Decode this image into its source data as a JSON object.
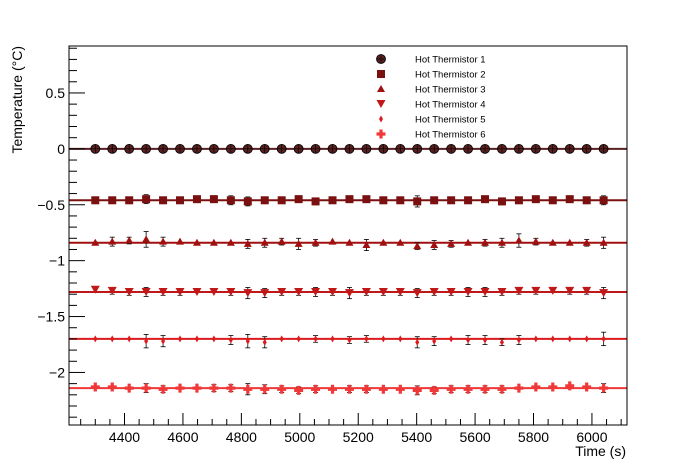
{
  "chart_data": {
    "type": "scatter",
    "title": "",
    "xlabel": "Time (s)",
    "ylabel": "Temperature (°C)",
    "xlim": [
      4210,
      6120
    ],
    "ylim": [
      -2.47,
      0.92
    ],
    "x_ticks": [
      4400,
      4600,
      4800,
      5000,
      5200,
      5400,
      5600,
      5800,
      6000
    ],
    "y_ticks": [
      0.5,
      0,
      -0.5,
      -1,
      -1.5,
      -2
    ],
    "y_tick_labels": [
      "0.5",
      "0",
      "−0.5",
      "−1",
      "−1.5",
      "−2"
    ],
    "grid": false,
    "legend_position": "top-right",
    "x": [
      4300,
      4358,
      4416,
      4474,
      4532,
      4590,
      4648,
      4706,
      4764,
      4822,
      4880,
      4938,
      4996,
      5054,
      5112,
      5170,
      5228,
      5286,
      5344,
      5402,
      5460,
      5518,
      5576,
      5634,
      5692,
      5750,
      5808,
      5866,
      5924,
      5982,
      6040
    ],
    "series": [
      {
        "name": "Hot Thermistor 1",
        "marker": "circle",
        "color": "#5a2020",
        "fit": 0.0,
        "values": [
          0,
          0,
          0,
          0,
          0,
          0,
          0,
          0,
          0,
          0,
          0,
          0,
          0,
          0,
          0,
          0,
          0,
          0,
          0,
          0,
          0,
          0,
          0,
          0,
          0,
          0,
          0,
          0,
          0,
          0,
          0
        ],
        "errors": [
          0.01,
          0.01,
          0.01,
          0.01,
          0.01,
          0.01,
          0.01,
          0.01,
          0.01,
          0.01,
          0.01,
          0.01,
          0.01,
          0.01,
          0.01,
          0.01,
          0.01,
          0.01,
          0.01,
          0.01,
          0.01,
          0.01,
          0.01,
          0.01,
          0.01,
          0.01,
          0.01,
          0.01,
          0.01,
          0.01,
          0.01
        ]
      },
      {
        "name": "Hot Thermistor 2",
        "marker": "square",
        "color": "#7a1010",
        "fit": -0.46,
        "values": [
          -0.46,
          -0.46,
          -0.46,
          -0.45,
          -0.46,
          -0.46,
          -0.45,
          -0.45,
          -0.46,
          -0.47,
          -0.46,
          -0.46,
          -0.45,
          -0.47,
          -0.46,
          -0.45,
          -0.45,
          -0.46,
          -0.46,
          -0.47,
          -0.46,
          -0.46,
          -0.46,
          -0.45,
          -0.47,
          -0.46,
          -0.45,
          -0.46,
          -0.45,
          -0.46,
          -0.46
        ],
        "errors": [
          0.03,
          0.02,
          0.03,
          0.04,
          0.03,
          0.02,
          0.02,
          0.03,
          0.04,
          0.04,
          0.03,
          0.02,
          0.03,
          0.03,
          0.02,
          0.02,
          0.02,
          0.03,
          0.02,
          0.05,
          0.03,
          0.02,
          0.02,
          0.02,
          0.03,
          0.03,
          0.02,
          0.02,
          0.02,
          0.03,
          0.04
        ]
      },
      {
        "name": "Hot Thermistor 3",
        "marker": "triangle-up",
        "color": "#a01010",
        "fit": -0.84,
        "values": [
          -0.84,
          -0.83,
          -0.82,
          -0.81,
          -0.83,
          -0.83,
          -0.84,
          -0.84,
          -0.84,
          -0.85,
          -0.84,
          -0.83,
          -0.85,
          -0.84,
          -0.83,
          -0.84,
          -0.86,
          -0.84,
          -0.84,
          -0.87,
          -0.86,
          -0.85,
          -0.84,
          -0.84,
          -0.84,
          -0.82,
          -0.83,
          -0.84,
          -0.84,
          -0.84,
          -0.84
        ],
        "errors": [
          0.02,
          0.04,
          0.03,
          0.07,
          0.04,
          0.02,
          0.02,
          0.02,
          0.02,
          0.04,
          0.04,
          0.03,
          0.05,
          0.03,
          0.02,
          0.02,
          0.05,
          0.02,
          0.02,
          0.03,
          0.04,
          0.03,
          0.02,
          0.03,
          0.04,
          0.06,
          0.03,
          0.02,
          0.02,
          0.03,
          0.05
        ]
      },
      {
        "name": "Hot Thermistor 4",
        "marker": "triangle-down",
        "color": "#c01818",
        "fit": -1.28,
        "values": [
          -1.26,
          -1.27,
          -1.28,
          -1.28,
          -1.28,
          -1.28,
          -1.28,
          -1.28,
          -1.28,
          -1.29,
          -1.29,
          -1.28,
          -1.28,
          -1.28,
          -1.28,
          -1.29,
          -1.28,
          -1.28,
          -1.28,
          -1.29,
          -1.28,
          -1.28,
          -1.28,
          -1.28,
          -1.28,
          -1.27,
          -1.27,
          -1.27,
          -1.27,
          -1.27,
          -1.29
        ],
        "errors": [
          0.02,
          0.03,
          0.03,
          0.04,
          0.03,
          0.03,
          0.02,
          0.02,
          0.03,
          0.05,
          0.04,
          0.03,
          0.03,
          0.04,
          0.03,
          0.05,
          0.03,
          0.03,
          0.03,
          0.04,
          0.03,
          0.03,
          0.04,
          0.04,
          0.03,
          0.03,
          0.03,
          0.02,
          0.03,
          0.03,
          0.05
        ]
      },
      {
        "name": "Hot Thermistor 5",
        "marker": "diamond",
        "color": "#dc1c1c",
        "fit": -1.7,
        "values": [
          -1.7,
          -1.7,
          -1.7,
          -1.72,
          -1.72,
          -1.7,
          -1.7,
          -1.7,
          -1.71,
          -1.72,
          -1.73,
          -1.7,
          -1.7,
          -1.7,
          -1.7,
          -1.71,
          -1.7,
          -1.7,
          -1.7,
          -1.73,
          -1.72,
          -1.7,
          -1.71,
          -1.71,
          -1.73,
          -1.71,
          -1.7,
          -1.7,
          -1.7,
          -1.7,
          -1.7
        ],
        "errors": [
          0.02,
          0.02,
          0.02,
          0.06,
          0.05,
          0.02,
          0.02,
          0.02,
          0.04,
          0.06,
          0.05,
          0.02,
          0.02,
          0.03,
          0.02,
          0.03,
          0.03,
          0.02,
          0.02,
          0.05,
          0.04,
          0.02,
          0.04,
          0.04,
          0.03,
          0.04,
          0.02,
          0.02,
          0.02,
          0.02,
          0.06
        ]
      },
      {
        "name": "Hot Thermistor 6",
        "marker": "cross",
        "color": "#f03838",
        "fit": -2.14,
        "values": [
          -2.13,
          -2.13,
          -2.14,
          -2.14,
          -2.15,
          -2.14,
          -2.14,
          -2.14,
          -2.14,
          -2.15,
          -2.15,
          -2.15,
          -2.16,
          -2.15,
          -2.15,
          -2.15,
          -2.15,
          -2.15,
          -2.15,
          -2.16,
          -2.16,
          -2.15,
          -2.15,
          -2.15,
          -2.15,
          -2.14,
          -2.13,
          -2.13,
          -2.12,
          -2.13,
          -2.14
        ],
        "errors": [
          0.02,
          0.02,
          0.02,
          0.04,
          0.03,
          0.02,
          0.02,
          0.03,
          0.03,
          0.05,
          0.04,
          0.03,
          0.03,
          0.03,
          0.02,
          0.03,
          0.03,
          0.02,
          0.02,
          0.04,
          0.03,
          0.03,
          0.03,
          0.03,
          0.03,
          0.02,
          0.02,
          0.02,
          0.02,
          0.02,
          0.04
        ]
      }
    ]
  }
}
